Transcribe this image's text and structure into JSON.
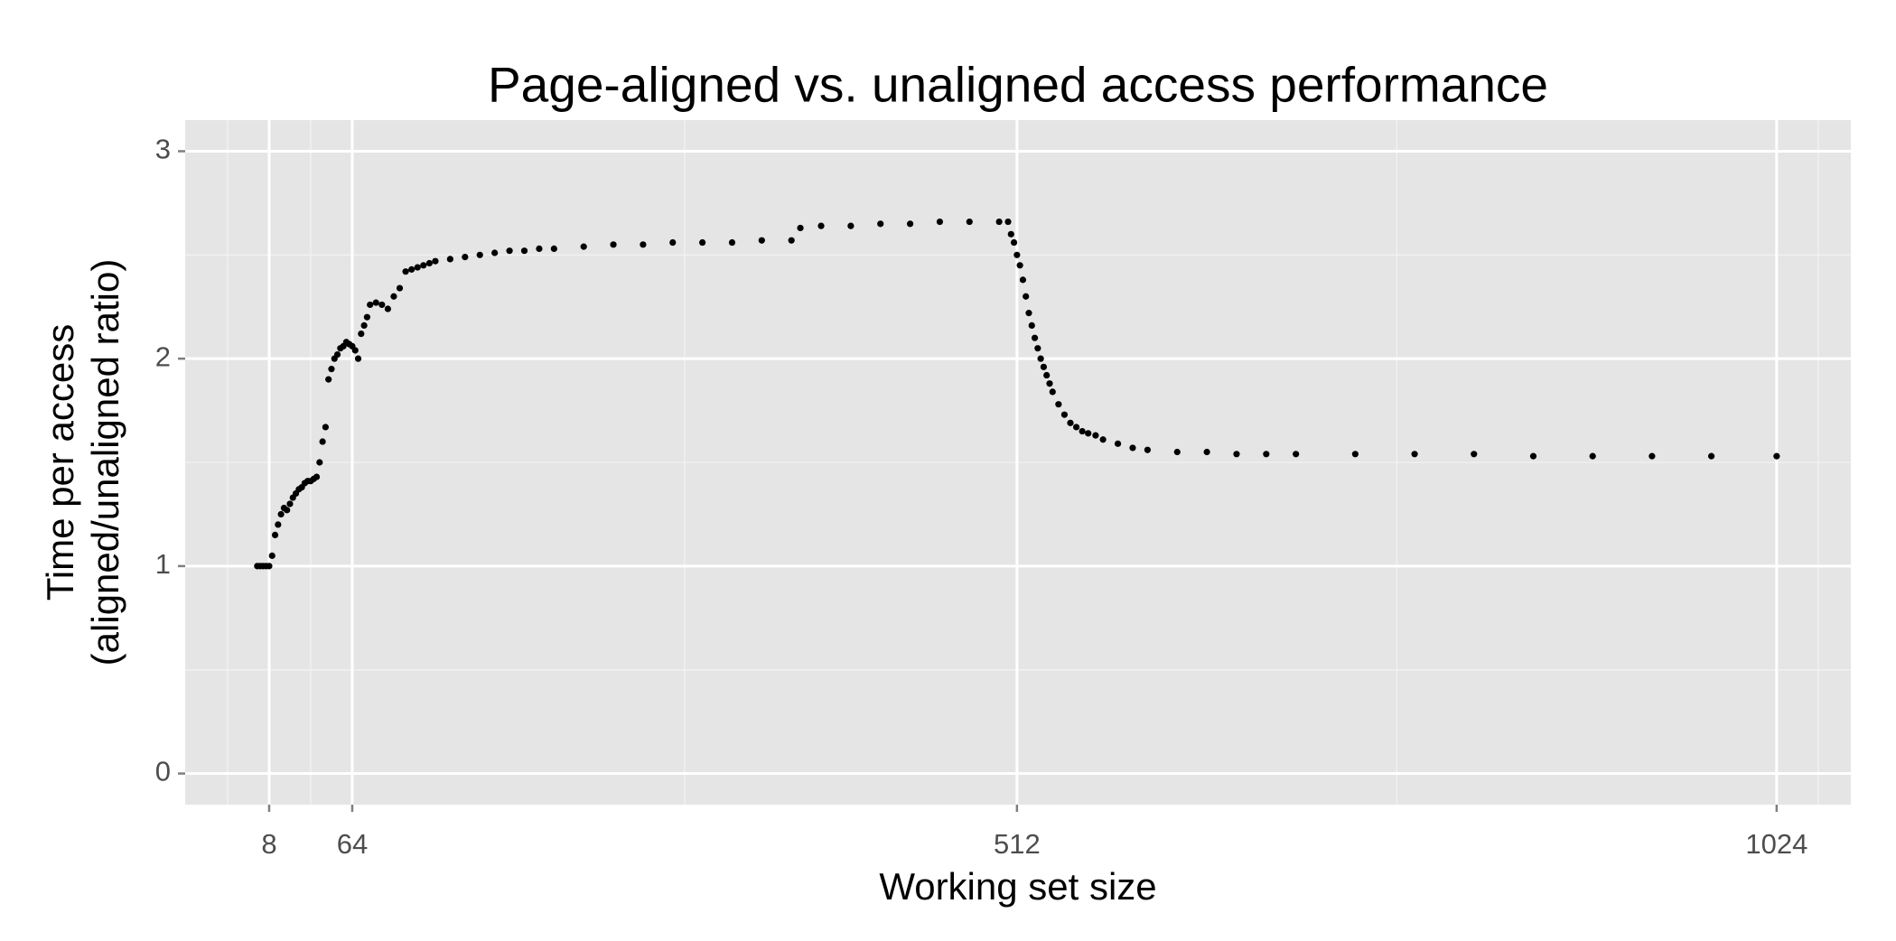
{
  "chart_data": {
    "type": "scatter",
    "title": "Page-aligned vs. unaligned access performance",
    "xlabel": "Working set size",
    "ylabel": [
      "Time per access",
      "(aligned/unaligned ratio)"
    ],
    "color": "#000000",
    "grid": true,
    "xlim": [
      -48.6,
      1074
    ],
    "ylim": [
      -0.15,
      3.15
    ],
    "xticks": [
      8,
      64,
      512,
      1024
    ],
    "yticks": [
      0,
      1,
      2,
      3
    ],
    "xminorticks": [
      -20,
      36,
      288,
      768,
      1052
    ],
    "yminorticks": [
      0.5,
      1.5,
      2.5
    ],
    "x": [
      0,
      2,
      4,
      6,
      8,
      10,
      12,
      14,
      16,
      18,
      20,
      22,
      24,
      26,
      28,
      30,
      32,
      34,
      36,
      38,
      40,
      42,
      44,
      46,
      48,
      50,
      52,
      54,
      56,
      58,
      60,
      62,
      64,
      66,
      68,
      70,
      72,
      74,
      76,
      80,
      84,
      88,
      92,
      96,
      100,
      104,
      108,
      112,
      116,
      120,
      130,
      140,
      150,
      160,
      170,
      180,
      190,
      200,
      220,
      240,
      260,
      280,
      300,
      320,
      340,
      360,
      366,
      380,
      400,
      420,
      440,
      460,
      480,
      500,
      506,
      508,
      510,
      512,
      514,
      516,
      518,
      520,
      522,
      524,
      526,
      528,
      530,
      532,
      534,
      536,
      540,
      544,
      548,
      552,
      556,
      560,
      565,
      570,
      580,
      590,
      600,
      620,
      640,
      660,
      680,
      700,
      740,
      780,
      820,
      860,
      900,
      940,
      980,
      1024
    ],
    "y": [
      1.0,
      1.0,
      1.0,
      1.0,
      1.0,
      1.05,
      1.15,
      1.2,
      1.25,
      1.28,
      1.27,
      1.3,
      1.33,
      1.35,
      1.37,
      1.38,
      1.4,
      1.41,
      1.41,
      1.42,
      1.43,
      1.5,
      1.6,
      1.67,
      1.9,
      1.95,
      2.0,
      2.02,
      2.05,
      2.06,
      2.08,
      2.07,
      2.06,
      2.04,
      2.0,
      2.12,
      2.16,
      2.2,
      2.26,
      2.27,
      2.26,
      2.24,
      2.3,
      2.34,
      2.42,
      2.43,
      2.44,
      2.45,
      2.46,
      2.47,
      2.48,
      2.49,
      2.5,
      2.51,
      2.52,
      2.52,
      2.53,
      2.53,
      2.54,
      2.55,
      2.55,
      2.56,
      2.56,
      2.56,
      2.57,
      2.57,
      2.63,
      2.64,
      2.64,
      2.65,
      2.65,
      2.66,
      2.66,
      2.66,
      2.66,
      2.6,
      2.56,
      2.5,
      2.45,
      2.38,
      2.3,
      2.22,
      2.16,
      2.1,
      2.05,
      2.0,
      1.96,
      1.92,
      1.88,
      1.84,
      1.78,
      1.73,
      1.69,
      1.67,
      1.65,
      1.64,
      1.63,
      1.61,
      1.59,
      1.57,
      1.56,
      1.55,
      1.55,
      1.54,
      1.54,
      1.54,
      1.54,
      1.54,
      1.54,
      1.53,
      1.53,
      1.53,
      1.53,
      1.53
    ]
  }
}
